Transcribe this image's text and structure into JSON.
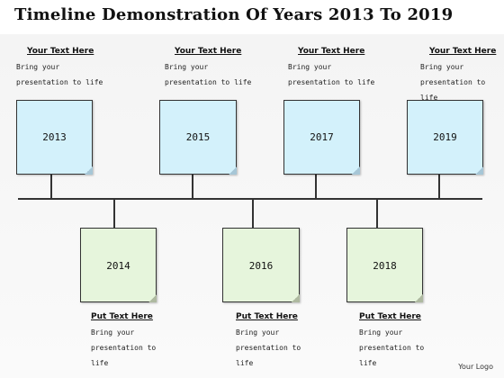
{
  "title": "Timeline Demonstration Of Years 2013 To 2019",
  "top_items": [
    {
      "year": "2013",
      "heading": "Your Text Here",
      "body": "Bring your\npresentation to life"
    },
    {
      "year": "2015",
      "heading": "Your Text Here",
      "body": "Bring your\npresentation to life"
    },
    {
      "year": "2017",
      "heading": "Your Text Here",
      "body": "Bring your\npresentation to life"
    },
    {
      "year": "2019",
      "heading": "Your Text Here",
      "body": "Bring your\npresentation to life"
    }
  ],
  "bottom_items": [
    {
      "year": "2014",
      "heading": "Put Text Here",
      "body": "Bring your\npresentation to\nlife"
    },
    {
      "year": "2016",
      "heading": "Put Text Here",
      "body": "Bring your\npresentation to\nlife"
    },
    {
      "year": "2018",
      "heading": "Put Text Here",
      "body": "Bring your\npresentation to\nlife"
    }
  ],
  "logo": "Your Logo",
  "colors": {
    "top_note": "#d3f1fb",
    "bottom_note": "#e6f5dc",
    "line": "#333333"
  }
}
